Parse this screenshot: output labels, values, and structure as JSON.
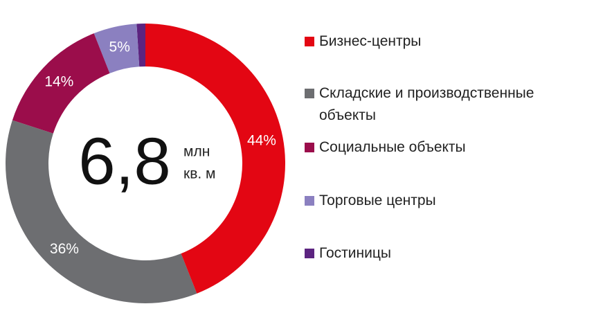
{
  "chart_data": {
    "type": "donut",
    "categories": [
      "Бизнес-центры",
      "Складские и производственные объекты",
      "Социальные объекты",
      "Торговые центры",
      "Гостиницы"
    ],
    "values": [
      44,
      36,
      14,
      5,
      1
    ],
    "value_labels": [
      "44%",
      "36%",
      "14%",
      "5%",
      null
    ],
    "colors": [
      "#e30613",
      "#6d6e71",
      "#9b0d4b",
      "#8b80c0",
      "#5c2480"
    ],
    "center_value": "6,8",
    "center_unit": [
      "млн",
      "кв. м"
    ]
  }
}
